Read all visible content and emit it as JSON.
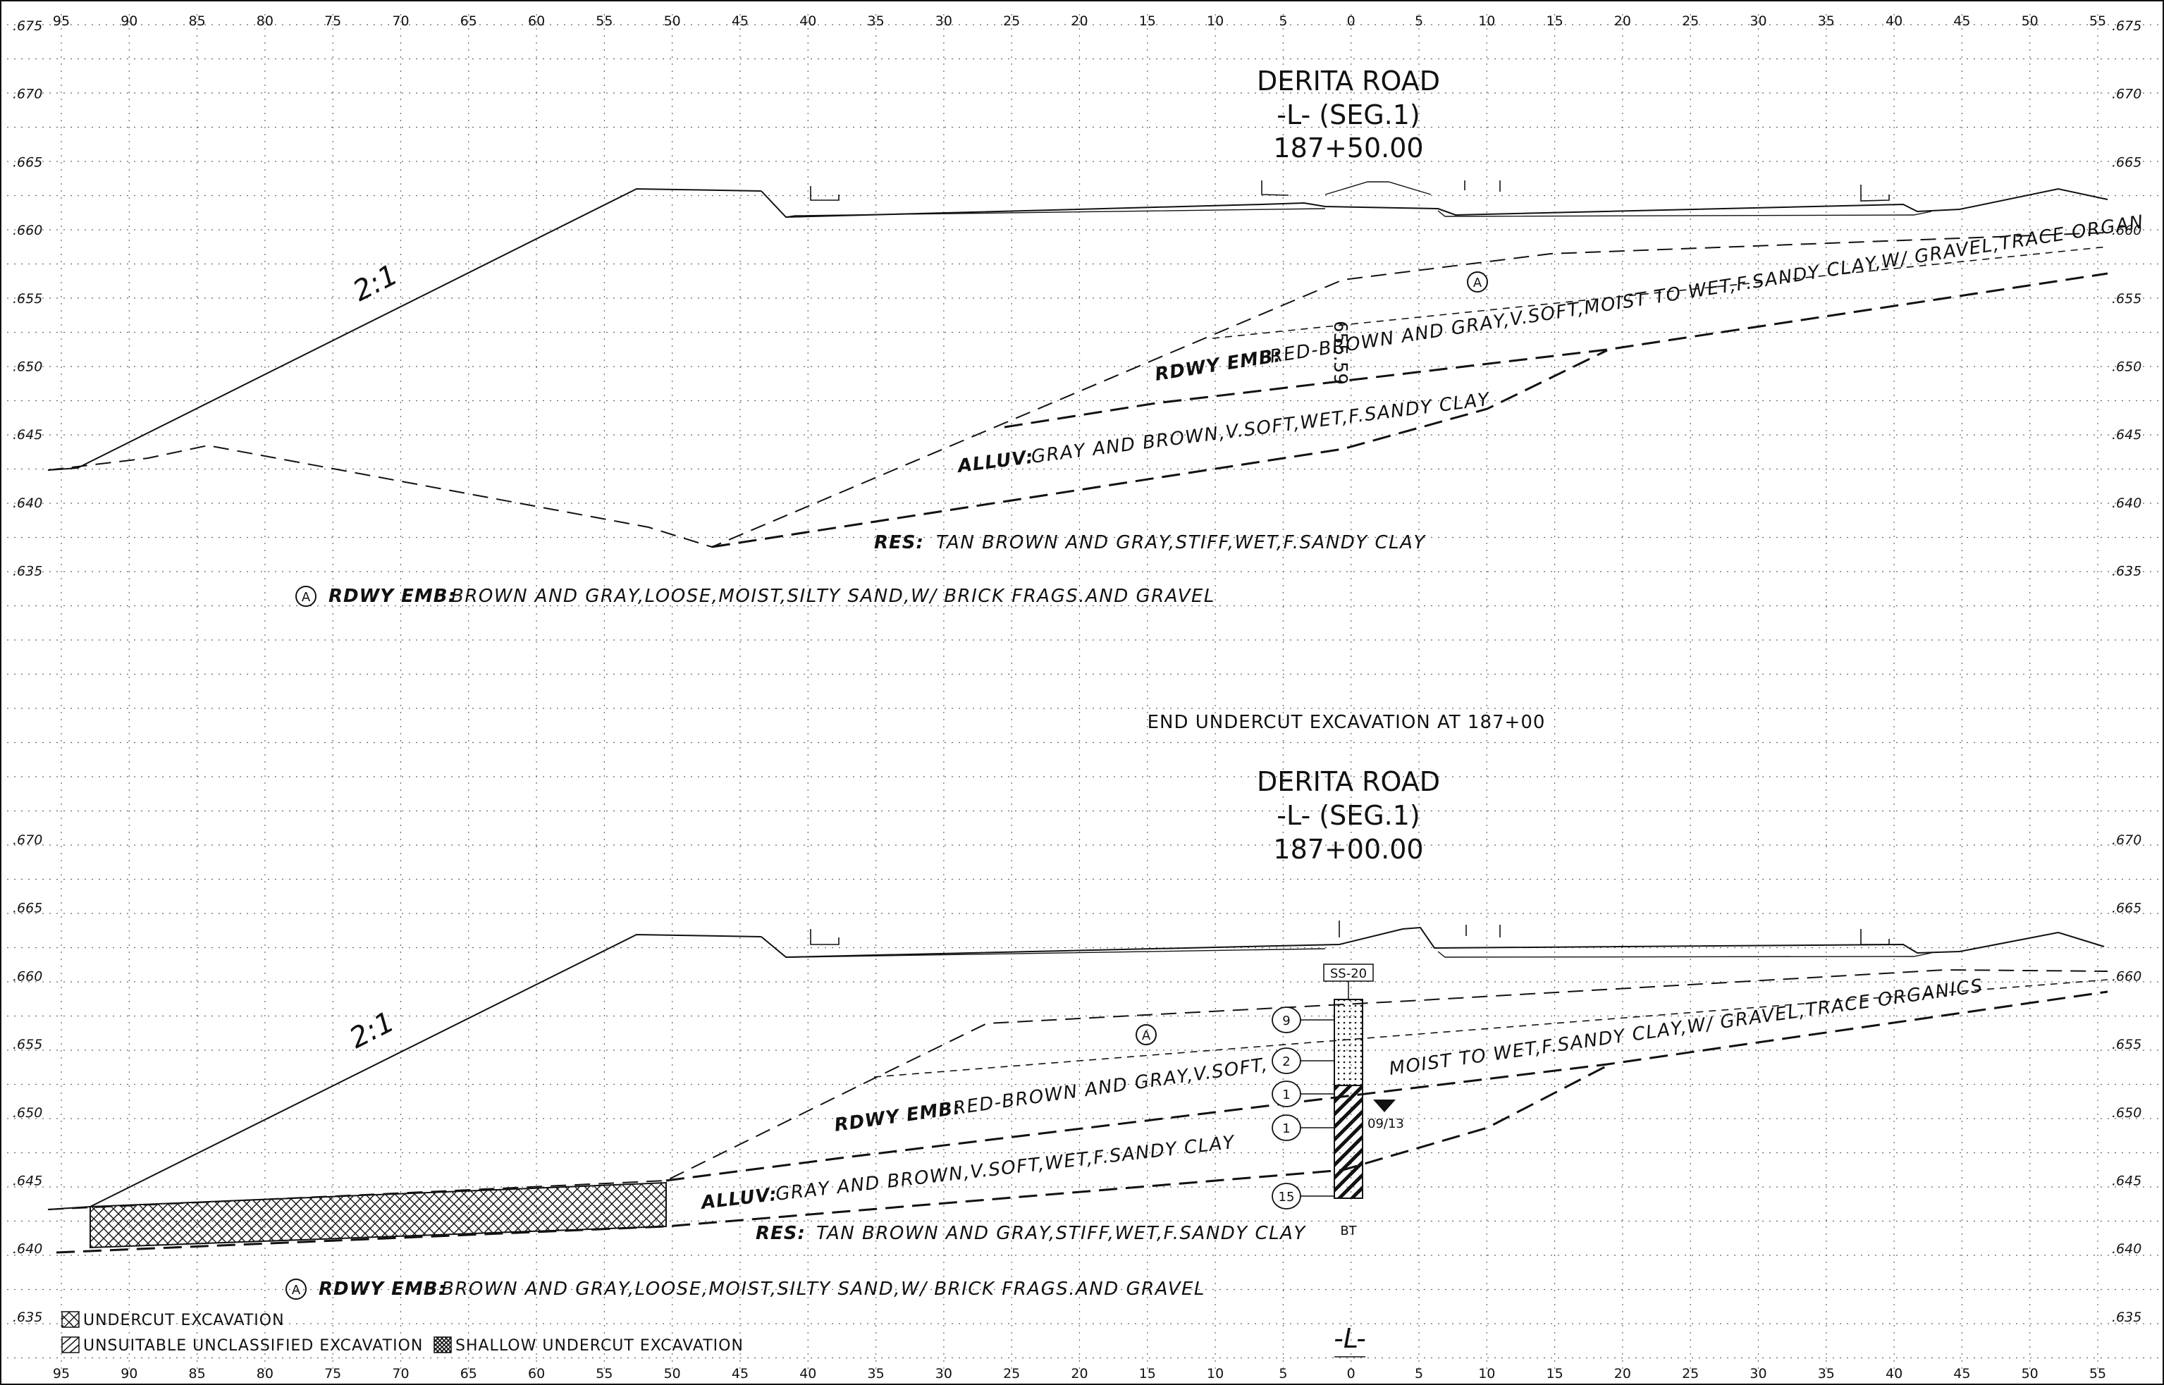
{
  "x_ticks": [
    "95",
    "90",
    "85",
    "80",
    "75",
    "70",
    "65",
    "60",
    "55",
    "50",
    "45",
    "40",
    "35",
    "30",
    "25",
    "20",
    "15",
    "10",
    "5",
    "0",
    "5",
    "10",
    "15",
    "20",
    "25",
    "30",
    "35",
    "40",
    "45",
    "50",
    "55"
  ],
  "sections": [
    {
      "title": "DERITA ROAD",
      "subtitle": "-L- (SEG.1)",
      "station": "187+50.00",
      "elevations": [
        ".675",
        ".670",
        ".665",
        ".660",
        ".655",
        ".650",
        ".645",
        ".640",
        ".635"
      ],
      "slope_label": "2:1",
      "marker_a": "A",
      "rdwy_emb_tag": "RDWY EMB:",
      "rdwy_emb_text": "RED-BROWN AND GRAY,V.SOFT,MOIST TO WET,F.SANDY CLAY,W/ GRAVEL,TRACE ORGAN",
      "alluv_tag": "ALLUV:",
      "alluv_text": "GRAY AND BROWN,V.SOFT,WET,F.SANDY CLAY",
      "res_tag": "RES:",
      "res_text": "TAN BROWN AND GRAY,STIFF,WET,F.SANDY CLAY",
      "vertical_note": "655.59",
      "note_a_tag": "RDWY EMB:",
      "note_a_text": "BROWN AND GRAY,LOOSE,MOIST,SILTY SAND,W/ BRICK FRAGS.AND GRAVEL"
    },
    {
      "title": "DERITA ROAD",
      "subtitle": "-L- (SEG.1)",
      "station": "187+00.00",
      "elevations": [
        ".670",
        ".665",
        ".660",
        ".655",
        ".650",
        ".645",
        ".640",
        ".635"
      ],
      "slope_label": "2:1",
      "marker_a": "A",
      "rdwy_emb_tag": "RDWY EMB:",
      "rdwy_emb_text": "RED-BROWN AND GRAY,V.SOFT,",
      "rdwy_emb_text_2": "MOIST TO WET,F.SANDY CLAY,W/ GRAVEL,TRACE ORGANICS",
      "alluv_tag": "ALLUV:",
      "alluv_text": "GRAY AND BROWN,V.SOFT,WET,F.SANDY CLAY",
      "res_tag": "RES:",
      "res_text": "TAN BROWN AND GRAY,STIFF,WET,F.SANDY CLAY",
      "note_a_tag": "RDWY EMB:",
      "note_a_text": "BROWN AND GRAY,LOOSE,MOIST,SILTY SAND,W/ BRICK FRAGS.AND GRAVEL",
      "boring": {
        "id": "SS-20",
        "blow_counts": [
          "9",
          "2",
          "1",
          "1",
          "15"
        ],
        "water_date": "09/13",
        "bottom": "BT"
      }
    }
  ],
  "mid_note": "END UNDERCUT EXCAVATION AT 187+00",
  "legend": {
    "undercut": "UNDERCUT EXCAVATION",
    "unsuitable": "UNSUITABLE UNCLASSIFIED EXCAVATION",
    "shallow": "SHALLOW UNDERCUT EXCAVATION"
  },
  "centerline_label": "-L-"
}
